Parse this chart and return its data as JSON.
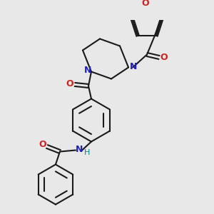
{
  "bg_color": "#e8e8e8",
  "bond_color": "#1a1a1a",
  "N_color": "#2222bb",
  "O_color": "#cc2222",
  "H_color": "#008888",
  "lw": 1.5,
  "figsize": [
    3.0,
    3.0
  ],
  "dpi": 100,
  "xlim": [
    0.3,
    2.9
  ],
  "ylim": [
    0.2,
    2.9
  ]
}
